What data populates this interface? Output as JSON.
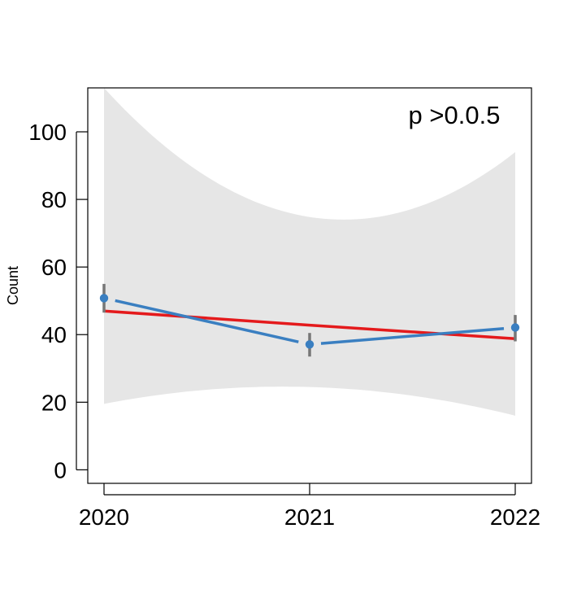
{
  "chart_data": {
    "type": "line",
    "ylabel": "Count",
    "annotation": "p >0.0.5",
    "x": [
      "2020",
      "2021",
      "2022"
    ],
    "ylim": [
      -4,
      113
    ],
    "yticks": [
      0,
      20,
      40,
      60,
      80,
      100
    ],
    "series": [
      {
        "kind": "observed",
        "color": "#3a7fc1",
        "values": [
          50.8,
          37.1,
          42.1
        ],
        "error_low": [
          46.5,
          33.5,
          38.0
        ],
        "error_high": [
          55.0,
          40.5,
          45.8
        ]
      },
      {
        "kind": "trend",
        "color": "#e41a1c",
        "values": [
          47.0,
          42.8,
          38.8
        ]
      }
    ],
    "confidence_band": {
      "color": "#e6e6e6",
      "lower": [
        19.5,
        24.5,
        16.0
      ],
      "upper": [
        113.0,
        74.8,
        94.0
      ]
    },
    "errorbar_color": "#777777"
  }
}
